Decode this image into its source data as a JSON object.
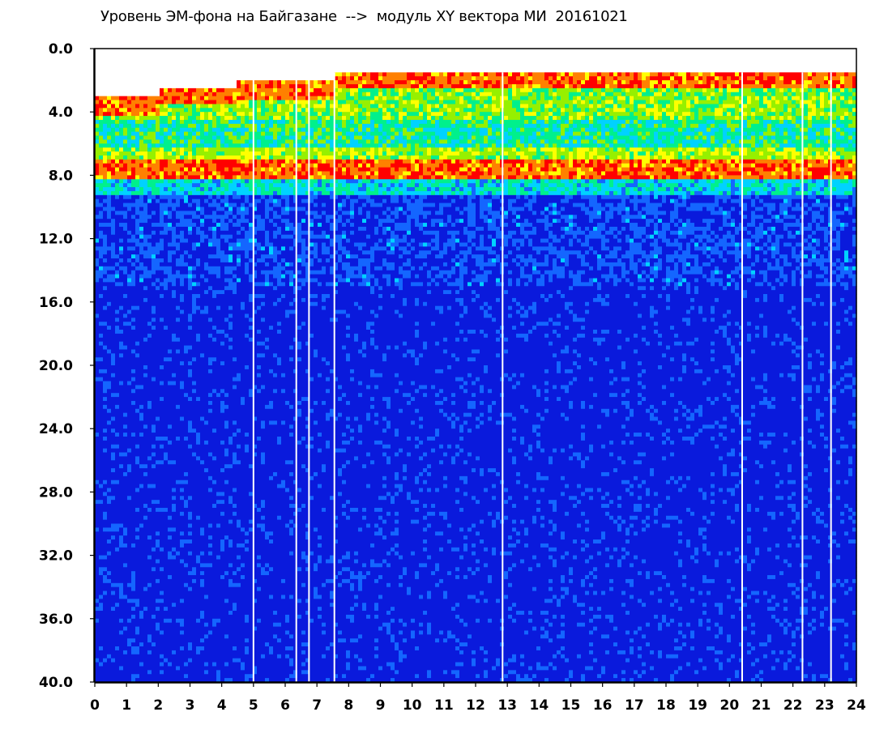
{
  "chart_data": {
    "type": "heatmap",
    "title": "Уровень ЭМ-фона на Байгазане  -->  модуль XY вектора МИ  20161021",
    "xlabel": "",
    "ylabel": "",
    "xlim": [
      0,
      24
    ],
    "ylim": [
      40,
      0
    ],
    "x_ticks": [
      "0",
      "1",
      "2",
      "3",
      "4",
      "5",
      "6",
      "7",
      "8",
      "9",
      "10",
      "11",
      "12",
      "13",
      "14",
      "15",
      "16",
      "17",
      "18",
      "19",
      "20",
      "21",
      "22",
      "23",
      "24"
    ],
    "y_ticks": [
      "0.0",
      "4.0",
      "8.0",
      "12.0",
      "16.0",
      "20.0",
      "24.0",
      "28.0",
      "32.0",
      "36.0",
      "40.0"
    ],
    "colormap": [
      "#0a1adc",
      "#1466ff",
      "#00d2ff",
      "#00f08c",
      "#96f000",
      "#ffff00",
      "#ff8000",
      "#ff0000"
    ],
    "bands": [
      {
        "from": 0.0,
        "to": 1.5,
        "level": "none"
      },
      {
        "from": 1.5,
        "to": 4.5,
        "level": "high (red/yellow/green)"
      },
      {
        "from": 4.5,
        "to": 6.5,
        "level": "medium (green/cyan)"
      },
      {
        "from": 6.5,
        "to": 8.3,
        "level": "high (red band)"
      },
      {
        "from": 8.3,
        "to": 9.5,
        "level": "medium (cyan/green)"
      },
      {
        "from": 9.5,
        "to": 15.0,
        "level": "low (blue with cyan speckle)"
      },
      {
        "from": 15.0,
        "to": 40.0,
        "level": "background (dark blue)"
      }
    ],
    "gaps_hours": [
      5.0,
      6.35,
      6.75,
      7.55,
      12.85,
      20.4,
      22.3,
      23.2
    ],
    "annotations": []
  }
}
